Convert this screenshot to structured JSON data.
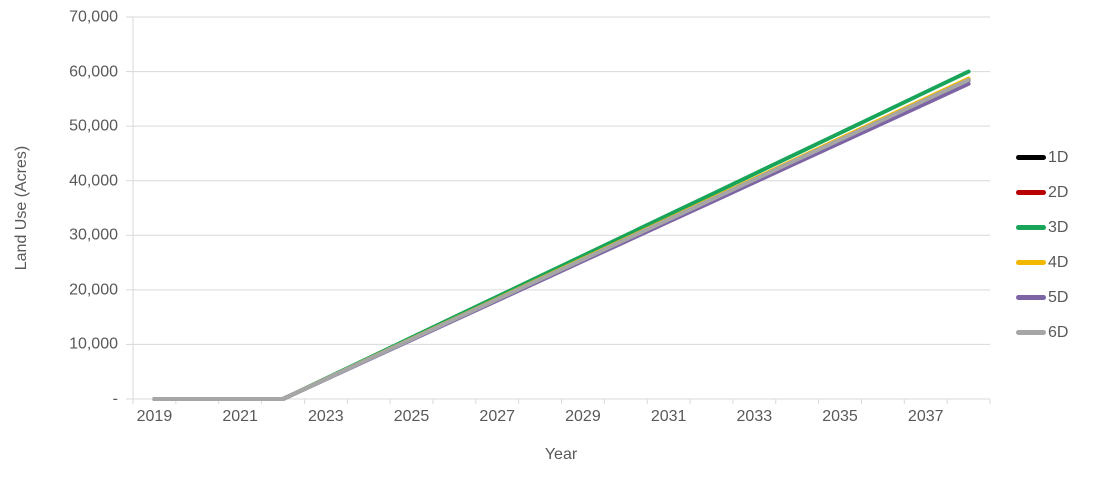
{
  "chart_data": {
    "type": "line",
    "title": "",
    "xlabel": "Year",
    "ylabel": "Land Use (Acres)",
    "x": [
      2019,
      2020,
      2021,
      2022,
      2023,
      2024,
      2025,
      2026,
      2027,
      2028,
      2029,
      2030,
      2031,
      2032,
      2033,
      2034,
      2035,
      2036,
      2037,
      2038
    ],
    "x_axis_tick_labels": [
      "2019",
      "2021",
      "2023",
      "2025",
      "2027",
      "2029",
      "2031",
      "2033",
      "2035",
      "2037"
    ],
    "y_axis_tick_labels": [
      "-",
      "10,000",
      "20,000",
      "30,000",
      "40,000",
      "50,000",
      "60,000",
      "70,000"
    ],
    "y_tick_step": 10000,
    "ylim": [
      0,
      70000
    ],
    "grid": "horizontal",
    "legend_position": "right",
    "colors": {
      "gridline": "#d9d9d9",
      "axis_line": "#d9d9d9",
      "tick_mark": "#d9d9d9",
      "axis_text": "#595959",
      "background": "#ffffff"
    },
    "series": [
      {
        "name": "1D",
        "color": "#000000",
        "values": [
          0,
          0,
          0,
          0,
          3650,
          7300,
          10950,
          14600,
          18250,
          21900,
          25550,
          29200,
          32850,
          36500,
          40150,
          43800,
          47450,
          51100,
          54750,
          58400
        ]
      },
      {
        "name": "2D",
        "color": "#b80000",
        "values": [
          0,
          0,
          0,
          0,
          3660,
          7320,
          10980,
          14640,
          18300,
          21960,
          25620,
          29280,
          32940,
          36600,
          40260,
          43920,
          47580,
          51240,
          54900,
          58560
        ]
      },
      {
        "name": "3D",
        "color": "#18a55a",
        "values": [
          0,
          0,
          0,
          0,
          3750,
          7500,
          11250,
          15000,
          18750,
          22500,
          26250,
          30000,
          33750,
          37500,
          41250,
          45000,
          48750,
          52500,
          56250,
          60000
        ]
      },
      {
        "name": "4D",
        "color": "#f2b800",
        "values": [
          0,
          0,
          0,
          0,
          3670,
          7340,
          11010,
          14680,
          18350,
          22020,
          25690,
          29360,
          33030,
          36700,
          40370,
          44040,
          47710,
          51380,
          55050,
          58720
        ]
      },
      {
        "name": "5D",
        "color": "#7d64a5",
        "values": [
          0,
          0,
          0,
          0,
          3610,
          7220,
          10830,
          14440,
          18050,
          21660,
          25270,
          28880,
          32490,
          36100,
          39710,
          43320,
          46930,
          50540,
          54150,
          57760
        ]
      },
      {
        "name": "6D",
        "color": "#a6a6a6",
        "values": [
          0,
          0,
          0,
          0,
          3655,
          7310,
          10965,
          14620,
          18275,
          21930,
          25585,
          29240,
          32895,
          36550,
          40205,
          43860,
          47515,
          51170,
          54825,
          58480
        ]
      }
    ]
  }
}
